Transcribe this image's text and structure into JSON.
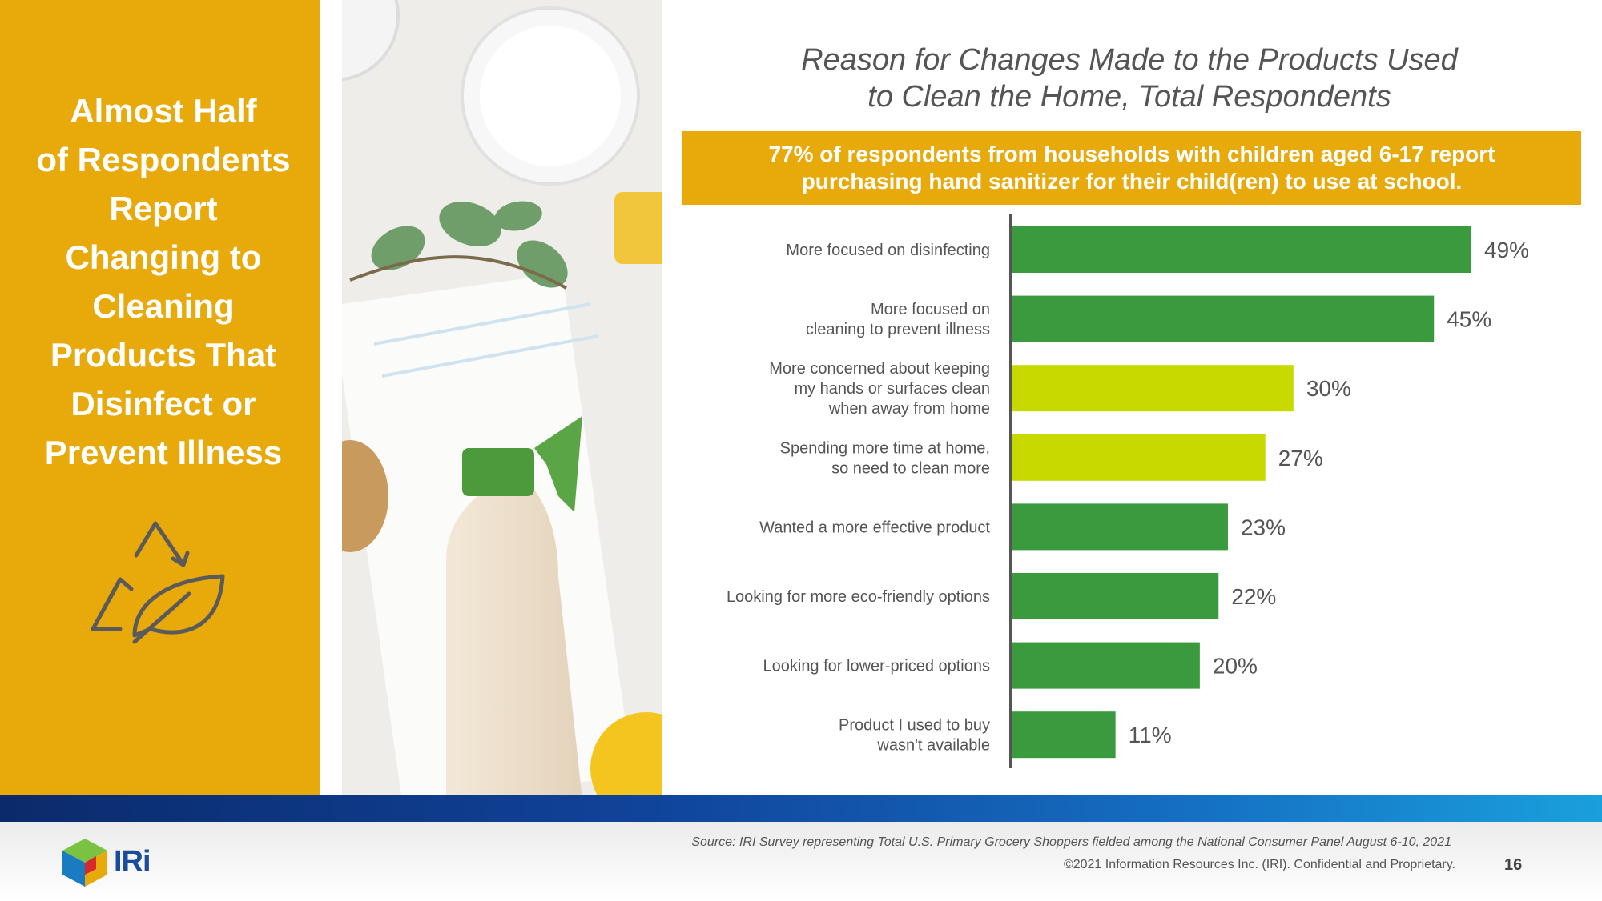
{
  "left_panel": {
    "headline": "Almost Half\nof Respondents\nReport\nChanging to\nCleaning\nProducts That\nDisinfect or\nPrevent Illness",
    "icon": "recycle-leaf-icon"
  },
  "photo": {
    "icon": "cleaning-products-photo"
  },
  "callout": "77% of respondents from households with children aged 6-17 report\npurchasing hand sanitizer for their child(ren) to use at school.",
  "colors": {
    "gold": "#e8a90b",
    "dark_green": "#3a9a3e",
    "lime": "#c8d900",
    "navy": "#10439a"
  },
  "chart_data": {
    "type": "bar",
    "orientation": "horizontal",
    "title": "Reason for Changes Made to the Products Used\nto Clean the Home, Total Respondents",
    "xlim": [
      0,
      50
    ],
    "categories": [
      "More focused on disinfecting",
      "More focused on\ncleaning to prevent illness",
      "More concerned about keeping\nmy hands or surfaces clean\nwhen away from home",
      "Spending more time at home,\nso need to clean more",
      "Wanted a more effective product",
      "Looking for more eco-friendly options",
      "Looking for lower-priced options",
      "Product I used to buy\nwasn't available"
    ],
    "values": [
      49,
      45,
      30,
      27,
      23,
      22,
      20,
      11
    ],
    "labels": [
      "49%",
      "45%",
      "30%",
      "27%",
      "23%",
      "22%",
      "20%",
      "11%"
    ],
    "bar_colors": [
      "#3a9a3e",
      "#3a9a3e",
      "#c8d900",
      "#c8d900",
      "#3a9a3e",
      "#3a9a3e",
      "#3a9a3e",
      "#3a9a3e"
    ]
  },
  "footer": {
    "source": "Source:  IRI Survey representing Total U.S. Primary Grocery Shoppers fielded among the National Consumer Panel August 6-10, 2021",
    "copyright": "©2021 Information Resources Inc. (IRI).  Confidential and Proprietary.",
    "page_number": "16",
    "logo_text": "IRi",
    "logo_icon": "iri-cube-logo-icon"
  }
}
